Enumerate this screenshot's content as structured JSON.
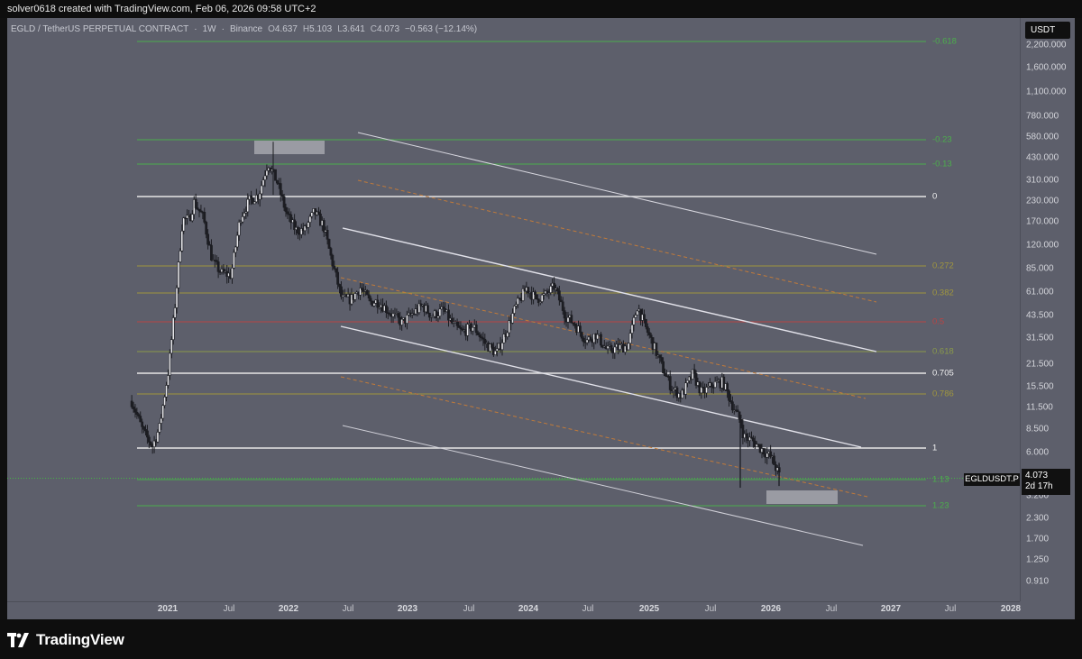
{
  "attribution": "solver0618 created with TradingView.com, Feb 06, 2026 09:58 UTC+2",
  "header": {
    "symbol": "EGLD / TetherUS PERPETUAL CONTRACT",
    "interval": "1W",
    "exchange": "Binance",
    "open_label": "O",
    "open": "4.637",
    "high_label": "H",
    "high": "5.103",
    "low_label": "L",
    "low": "3.641",
    "close_label": "C",
    "close": "4.073",
    "change": "−0.563 (−12.14%)"
  },
  "currency_button": "USDT",
  "price_tag": {
    "ticker": "EGLDUSDT.P",
    "price": "4.073",
    "countdown": "2d 17h"
  },
  "brand": "TradingView",
  "colors": {
    "background": "#5d5f6b",
    "candle": "#1c1d22",
    "fib_green": "#4cae4c",
    "fib_yellow": "#a0963e",
    "fib_white": "#e6e6e6",
    "fib_red": "#b84444",
    "fib_olive": "#8a9a4a",
    "channel_line": "#d0d0d8",
    "channel_mid": "#c07a3a"
  },
  "chart_data": {
    "type": "candlestick",
    "title": "EGLD / TetherUS PERPETUAL CONTRACT · 1W · Binance",
    "scale": "log",
    "y_axis_ticks": [
      "2,200.000",
      "1,600.000",
      "1,100.000",
      "780.000",
      "580.000",
      "430.000",
      "310.000",
      "230.000",
      "170.000",
      "120.000",
      "85.000",
      "61.000",
      "43.500",
      "31.500",
      "21.500",
      "15.500",
      "11.500",
      "8.500",
      "6.000",
      "4.073",
      "3.200",
      "2.300",
      "1.700",
      "1.250",
      "0.910"
    ],
    "x_axis_ticks": [
      {
        "label": "2021",
        "year": true
      },
      {
        "label": "Jul",
        "year": false
      },
      {
        "label": "2022",
        "year": true
      },
      {
        "label": "Jul",
        "year": false
      },
      {
        "label": "2023",
        "year": true
      },
      {
        "label": "Jul",
        "year": false
      },
      {
        "label": "2024",
        "year": true
      },
      {
        "label": "Jul",
        "year": false
      },
      {
        "label": "2025",
        "year": true
      },
      {
        "label": "Jul",
        "year": false
      },
      {
        "label": "2026",
        "year": true
      },
      {
        "label": "Jul",
        "year": false
      },
      {
        "label": "2027",
        "year": true
      },
      {
        "label": "Jul",
        "year": false
      },
      {
        "label": "2028",
        "year": true
      }
    ],
    "last_price": 4.073,
    "price_path": [
      [
        "2020-09-14",
        12.5
      ],
      [
        "2020-10-19",
        8.0
      ],
      [
        "2020-11-16",
        6.5
      ],
      [
        "2020-12-07",
        8.5
      ],
      [
        "2021-01-04",
        20.0
      ],
      [
        "2021-01-25",
        55.0
      ],
      [
        "2021-02-15",
        175.0
      ],
      [
        "2021-03-08",
        175.0
      ],
      [
        "2021-03-22",
        225.0
      ],
      [
        "2021-04-19",
        180.0
      ],
      [
        "2021-05-17",
        95.0
      ],
      [
        "2021-06-14",
        80.0
      ],
      [
        "2021-07-12",
        78.0
      ],
      [
        "2021-08-09",
        180.0
      ],
      [
        "2021-09-06",
        230.0
      ],
      [
        "2021-10-04",
        250.0
      ],
      [
        "2021-11-01",
        400.0
      ],
      [
        "2021-11-29",
        300.0
      ],
      [
        "2021-12-27",
        190.0
      ],
      [
        "2022-01-24",
        150.0
      ],
      [
        "2022-02-21",
        150.0
      ],
      [
        "2022-03-21",
        195.0
      ],
      [
        "2022-04-18",
        160.0
      ],
      [
        "2022-05-09",
        105.0
      ],
      [
        "2022-06-13",
        55.0
      ],
      [
        "2022-07-11",
        55.0
      ],
      [
        "2022-08-08",
        65.0
      ],
      [
        "2022-09-05",
        53.0
      ],
      [
        "2022-10-03",
        53.0
      ],
      [
        "2022-11-07",
        45.0
      ],
      [
        "2022-12-12",
        39.0
      ],
      [
        "2023-01-16",
        45.0
      ],
      [
        "2023-02-13",
        50.0
      ],
      [
        "2023-03-13",
        43.0
      ],
      [
        "2023-04-17",
        47.0
      ],
      [
        "2023-05-15",
        38.0
      ],
      [
        "2023-06-12",
        34.0
      ],
      [
        "2023-07-17",
        37.0
      ],
      [
        "2023-08-21",
        29.0
      ],
      [
        "2023-09-25",
        25.0
      ],
      [
        "2023-10-23",
        34.0
      ],
      [
        "2023-11-20",
        48.0
      ],
      [
        "2023-12-25",
        65.0
      ],
      [
        "2024-01-22",
        55.0
      ],
      [
        "2024-02-19",
        58.0
      ],
      [
        "2024-03-18",
        66.0
      ],
      [
        "2024-04-22",
        43.0
      ],
      [
        "2024-05-20",
        38.0
      ],
      [
        "2024-06-24",
        30.0
      ],
      [
        "2024-07-22",
        33.0
      ],
      [
        "2024-08-26",
        26.0
      ],
      [
        "2024-09-23",
        27.0
      ],
      [
        "2024-10-28",
        28.0
      ],
      [
        "2024-11-25",
        50.0
      ],
      [
        "2024-12-16",
        38.0
      ],
      [
        "2025-01-13",
        28.0
      ],
      [
        "2025-02-10",
        20.0
      ],
      [
        "2025-03-10",
        15.0
      ],
      [
        "2025-04-07",
        13.5
      ],
      [
        "2025-05-12",
        18.5
      ],
      [
        "2025-06-09",
        14.0
      ],
      [
        "2025-07-14",
        16.0
      ],
      [
        "2025-08-11",
        16.5
      ],
      [
        "2025-09-08",
        12.0
      ],
      [
        "2025-10-06",
        9.0
      ],
      [
        "2025-10-13",
        7.5
      ],
      [
        "2025-11-10",
        7.0
      ],
      [
        "2025-12-08",
        6.2
      ],
      [
        "2026-01-05",
        5.5
      ],
      [
        "2026-02-02",
        4.073
      ]
    ],
    "fib_levels": [
      {
        "label": "-0.618",
        "color": "green"
      },
      {
        "label": "-0.23",
        "color": "green"
      },
      {
        "label": "-0.13",
        "color": "green"
      },
      {
        "label": "0",
        "color": "white"
      },
      {
        "label": "0.272",
        "color": "yellow"
      },
      {
        "label": "0.382",
        "color": "yellow"
      },
      {
        "label": "0.5",
        "color": "red"
      },
      {
        "label": "0.618",
        "color": "olive"
      },
      {
        "label": "0.705",
        "color": "white"
      },
      {
        "label": "0.786",
        "color": "yellow"
      },
      {
        "label": "1",
        "color": "white"
      },
      {
        "label": "1.13",
        "color": "green"
      },
      {
        "label": "1.23",
        "color": "green"
      }
    ],
    "grid": false
  }
}
